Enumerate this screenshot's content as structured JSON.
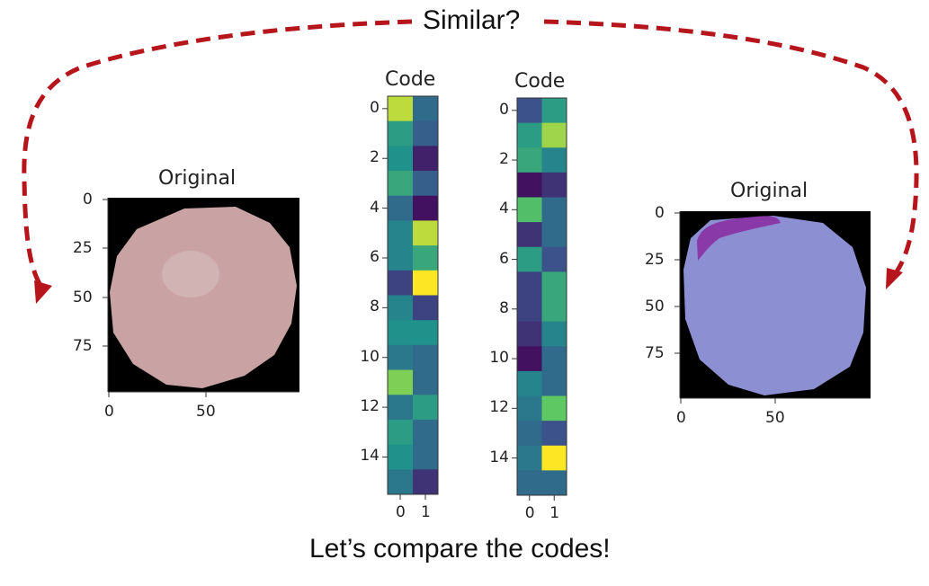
{
  "top_label": "Similar?",
  "bottom_label": "Let’s compare the codes!",
  "colors": {
    "arrow": "#b5151b",
    "image_bg": "#000000"
  },
  "left_image": {
    "title": "Original",
    "y_ticks": [
      "0",
      "25",
      "50",
      "75"
    ],
    "x_ticks": [
      "0",
      "50"
    ],
    "cell_color": "#c9a3a4"
  },
  "right_image": {
    "title": "Original",
    "y_ticks": [
      "0",
      "25",
      "50",
      "75"
    ],
    "x_ticks": [
      "0",
      "50"
    ],
    "cell_color": "#8d8fd3",
    "stain_color": "#8a3aa8"
  },
  "chart_data": [
    {
      "type": "heatmap",
      "title": "Code",
      "colormap": "viridis",
      "x_ticks": [
        "0",
        "1"
      ],
      "y_ticks": [
        "0",
        "2",
        "4",
        "6",
        "8",
        "10",
        "12",
        "14"
      ],
      "rows": 16,
      "cols": 2,
      "values": [
        [
          0.9,
          0.35
        ],
        [
          0.55,
          0.3
        ],
        [
          0.5,
          0.1
        ],
        [
          0.6,
          0.3
        ],
        [
          0.35,
          0.05
        ],
        [
          0.45,
          0.9
        ],
        [
          0.45,
          0.6
        ],
        [
          0.2,
          1.0
        ],
        [
          0.45,
          0.2
        ],
        [
          0.5,
          0.5
        ],
        [
          0.4,
          0.35
        ],
        [
          0.8,
          0.35
        ],
        [
          0.4,
          0.55
        ],
        [
          0.55,
          0.35
        ],
        [
          0.5,
          0.35
        ],
        [
          0.4,
          0.15
        ]
      ]
    },
    {
      "type": "heatmap",
      "title": "Code",
      "colormap": "viridis",
      "x_ticks": [
        "0",
        "1"
      ],
      "y_ticks": [
        "0",
        "2",
        "4",
        "6",
        "8",
        "10",
        "12",
        "14"
      ],
      "rows": 16,
      "cols": 2,
      "values": [
        [
          0.25,
          0.55
        ],
        [
          0.55,
          0.85
        ],
        [
          0.6,
          0.45
        ],
        [
          0.05,
          0.15
        ],
        [
          0.7,
          0.35
        ],
        [
          0.15,
          0.35
        ],
        [
          0.55,
          0.25
        ],
        [
          0.2,
          0.6
        ],
        [
          0.2,
          0.6
        ],
        [
          0.15,
          0.45
        ],
        [
          0.05,
          0.35
        ],
        [
          0.45,
          0.35
        ],
        [
          0.4,
          0.75
        ],
        [
          0.35,
          0.25
        ],
        [
          0.4,
          1.0
        ],
        [
          0.35,
          0.35
        ]
      ]
    }
  ]
}
